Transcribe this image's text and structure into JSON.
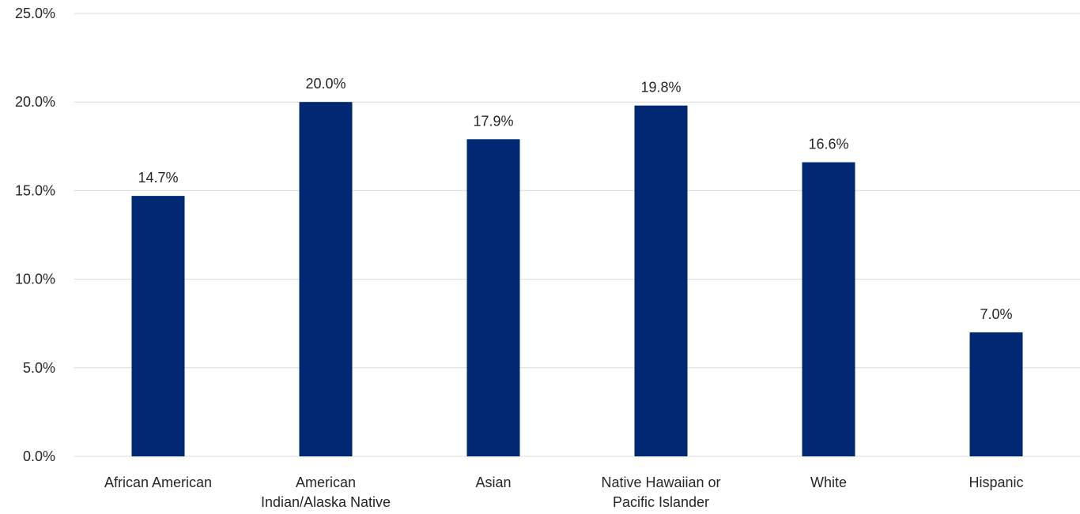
{
  "chart_data": {
    "type": "bar",
    "categories": [
      [
        "African American"
      ],
      [
        "American",
        "Indian/Alaska Native"
      ],
      [
        "Asian"
      ],
      [
        "Native Hawaiian or",
        "Pacific Islander"
      ],
      [
        "White"
      ],
      [
        "Hispanic"
      ]
    ],
    "values": [
      14.7,
      20.0,
      17.9,
      19.8,
      16.6,
      7.0
    ],
    "data_labels": [
      "14.7%",
      "20.0%",
      "17.9%",
      "19.8%",
      "16.6%",
      "7.0%"
    ],
    "ylim": [
      0,
      25
    ],
    "yticks": [
      0,
      5,
      10,
      15,
      20,
      25
    ],
    "ytick_labels": [
      "0.0%",
      "5.0%",
      "10.0%",
      "15.0%",
      "20.0%",
      "25.0%"
    ],
    "bar_color": "#002873",
    "grid_color": "#d9d9d9",
    "grid": true,
    "legend": false
  }
}
